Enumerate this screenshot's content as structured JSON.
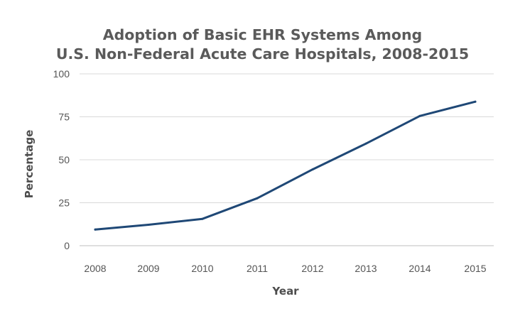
{
  "chart_data": {
    "type": "line",
    "title": [
      "Adoption of Basic EHR Systems Among",
      "U.S. Non-Federal Acute Care Hospitals, 2008-2015"
    ],
    "xlabel": "Year",
    "ylabel": "Percentage",
    "categories": [
      "2008",
      "2009",
      "2010",
      "2011",
      "2012",
      "2013",
      "2014",
      "2015"
    ],
    "yticks": [
      "0",
      "25",
      "50",
      "75",
      "100"
    ],
    "ylim": [
      0,
      100
    ],
    "grid": true,
    "legend": "none",
    "series": [
      {
        "values": [
          9.4,
          12.2,
          15.6,
          27.6,
          44.4,
          59.4,
          75.5,
          83.8
        ],
        "color": "#1f4876"
      }
    ]
  }
}
